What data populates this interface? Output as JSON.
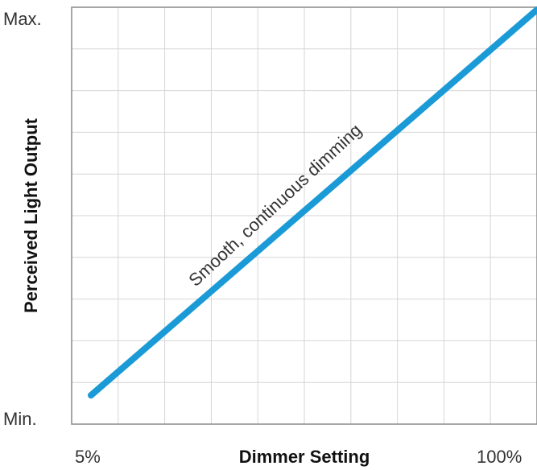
{
  "chart_data": {
    "type": "line",
    "title": "",
    "xlabel": "Dimmer Setting",
    "ylabel": "Perceived Light Output",
    "x_tick_labels": {
      "start": "5%",
      "end": "100%"
    },
    "y_tick_labels": {
      "start": "Min.",
      "end": "Max."
    },
    "xlim": [
      5,
      100
    ],
    "ylim": [
      0,
      1
    ],
    "grid": true,
    "series": [
      {
        "x": [
          5,
          100
        ],
        "y": [
          0.03,
          1.0
        ],
        "color": "#1a9ad6"
      }
    ],
    "annotations": [
      {
        "text": "Smooth, continuous dimming"
      }
    ]
  }
}
